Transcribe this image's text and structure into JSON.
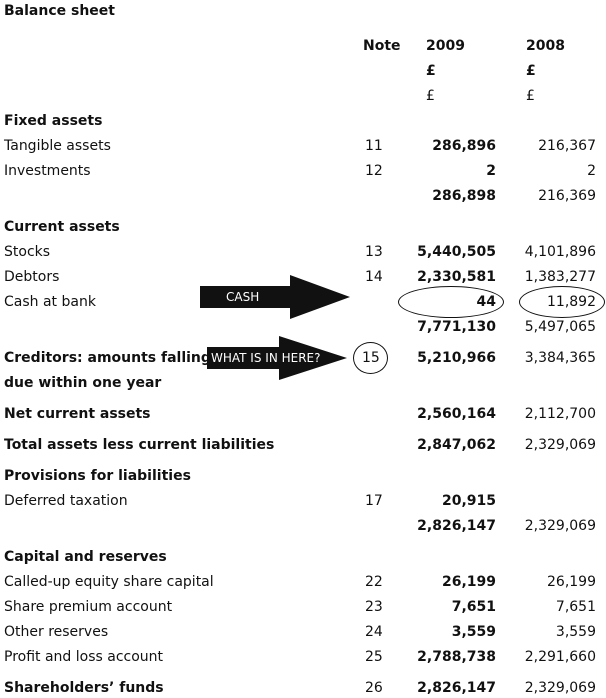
{
  "title": "Balance sheet",
  "columns": {
    "note": "Note",
    "y1": "2009",
    "y2": "2008",
    "currency_y1": "£",
    "currency_y2": "£",
    "currency_sub": "£"
  },
  "sections": {
    "fixed_assets": "Fixed assets",
    "current_assets": "Current assets",
    "provisions": "Provisions for liabilities",
    "capital": "Capital and reserves"
  },
  "rows": {
    "tangible": {
      "label": "Tangible assets",
      "note": "11",
      "y1": "286,896",
      "y2": "216,367"
    },
    "investments": {
      "label": "Investments",
      "note": "12",
      "y1": "2",
      "y2": "2"
    },
    "fixed_total": {
      "y1": "286,898",
      "y2": "216,369"
    },
    "stocks": {
      "label": "Stocks",
      "note": "13",
      "y1": "5,440,505",
      "y2": "4,101,896"
    },
    "debtors": {
      "label": "Debtors",
      "note": "14",
      "y1": "2,330,581",
      "y2": "1,383,277"
    },
    "cash": {
      "label": "Cash at bank",
      "y1": "44",
      "y2": "11,892"
    },
    "current_total": {
      "y1": "7,771,130",
      "y2": "5,497,065"
    },
    "creditors": {
      "label1": "Creditors: amounts falling",
      "label2": "due within one year",
      "note": "15",
      "y1": "5,210,966",
      "y2": "3,384,365"
    },
    "net_current": {
      "label": "Net current assets",
      "y1": "2,560,164",
      "y2": "2,112,700"
    },
    "total_assets": {
      "label": "Total assets less current liabilities",
      "y1": "2,847,062",
      "y2": "2,329,069"
    },
    "deferred": {
      "label": "Deferred taxation",
      "note": "17",
      "y1": "20,915"
    },
    "after_prov": {
      "y1": "2,826,147",
      "y2": "2,329,069"
    },
    "called_up": {
      "label": "Called-up equity share capital",
      "note": "22",
      "y1": "26,199",
      "y2": "26,199"
    },
    "share_premium": {
      "label": "Share premium account",
      "note": "23",
      "y1": "7,651",
      "y2": "7,651"
    },
    "other_reserves": {
      "label": "Other reserves",
      "note": "24",
      "y1": "3,559",
      "y2": "3,559"
    },
    "pl_account": {
      "label": "Profit and loss account",
      "note": "25",
      "y1": "2,788,738",
      "y2": "2,291,660"
    },
    "shareholders": {
      "label": "Shareholders’ funds",
      "note": "26",
      "y1": "2,826,147",
      "y2": "2,329,069"
    }
  },
  "annotations": {
    "cash_arrow": "CASH",
    "creditors_arrow": "WHAT IS IN HERE?"
  }
}
